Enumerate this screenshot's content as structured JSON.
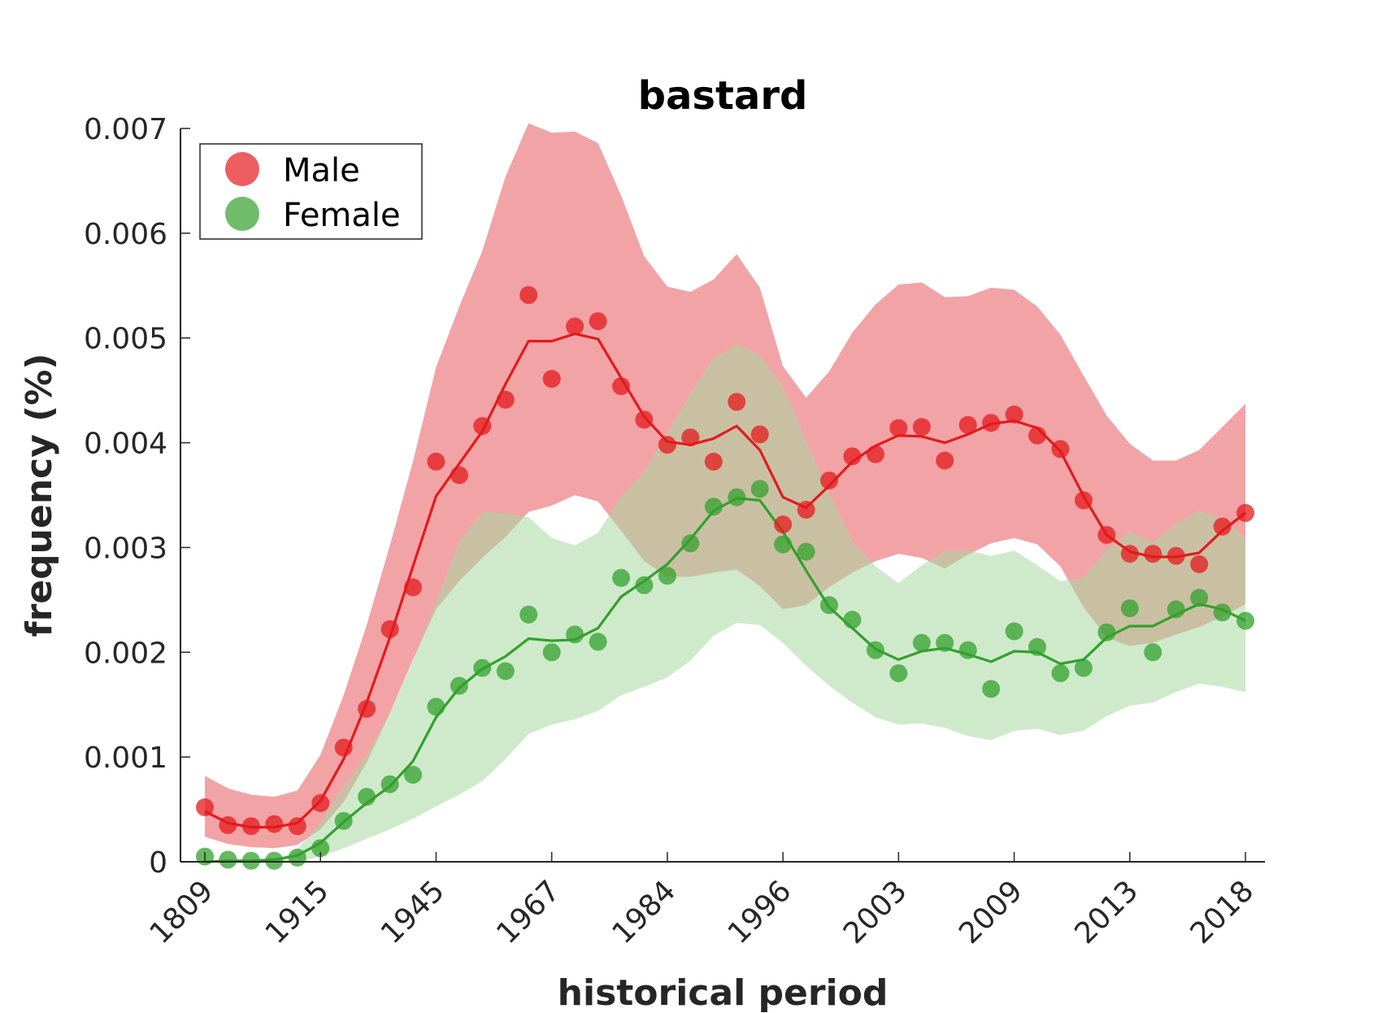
{
  "chart_data": {
    "type": "line",
    "title": "bastard",
    "xlabel": "historical period",
    "ylabel": "frequency (%)",
    "ylim": [
      0,
      0.007
    ],
    "y_ticks": [
      "0",
      "0.001",
      "0.002",
      "0.003",
      "0.004",
      "0.005",
      "0.006",
      "0.007"
    ],
    "x_ticks": [
      {
        "index": 0,
        "label": "1809"
      },
      {
        "index": 5,
        "label": "1915"
      },
      {
        "index": 10,
        "label": "1945"
      },
      {
        "index": 15,
        "label": "1967"
      },
      {
        "index": 20,
        "label": "1984"
      },
      {
        "index": 25,
        "label": "1996"
      },
      {
        "index": 30,
        "label": "2003"
      },
      {
        "index": 35,
        "label": "2009"
      },
      {
        "index": 40,
        "label": "2013"
      },
      {
        "index": 45,
        "label": "2018"
      }
    ],
    "legend": {
      "placement": "top-left",
      "entries": [
        "Male",
        "Female"
      ]
    },
    "grid": false,
    "series": [
      {
        "name": "Male",
        "color": "#e41a1c",
        "band_color": "#f2a3a6",
        "points": [
          0.00052,
          0.00035,
          0.00034,
          0.00036,
          0.00034,
          0.00056,
          0.00109,
          0.00146,
          0.00222,
          0.00262,
          0.00382,
          0.00369,
          0.00416,
          0.00441,
          0.00541,
          0.00461,
          0.00511,
          0.00516,
          0.00454,
          0.00422,
          0.00398,
          0.00405,
          0.00382,
          0.00439,
          0.00408,
          0.00322,
          0.00336,
          0.00364,
          0.00387,
          0.00389,
          0.00414,
          0.00415,
          0.00383,
          0.00417,
          0.00419,
          0.00427,
          0.00407,
          0.00394,
          0.00345,
          0.00312,
          0.00294,
          0.00294,
          0.00292,
          0.00284,
          0.0032,
          0.00333
        ],
        "line": [
          0.00048,
          0.00037,
          0.00033,
          0.00033,
          0.00037,
          0.00058,
          0.00098,
          0.00152,
          0.00214,
          0.00282,
          0.00349,
          0.0038,
          0.00411,
          0.00456,
          0.00497,
          0.00497,
          0.00504,
          0.00499,
          0.00462,
          0.00425,
          0.00401,
          0.00398,
          0.00404,
          0.00416,
          0.00393,
          0.00348,
          0.00338,
          0.00359,
          0.00382,
          0.00397,
          0.00407,
          0.00406,
          0.004,
          0.00408,
          0.00418,
          0.00421,
          0.00414,
          0.00392,
          0.00349,
          0.00312,
          0.00296,
          0.00291,
          0.00291,
          0.00295,
          0.00316,
          0.00333
        ],
        "band_upper": [
          0.00082,
          0.0007,
          0.00064,
          0.00062,
          0.00068,
          0.00102,
          0.00159,
          0.00226,
          0.00302,
          0.00382,
          0.00472,
          0.0053,
          0.00583,
          0.00654,
          0.00705,
          0.00696,
          0.00697,
          0.00686,
          0.00636,
          0.00578,
          0.00549,
          0.00544,
          0.00556,
          0.0058,
          0.00548,
          0.00473,
          0.00443,
          0.00468,
          0.00505,
          0.00532,
          0.00551,
          0.00553,
          0.00539,
          0.0054,
          0.00548,
          0.00546,
          0.0053,
          0.00503,
          0.00464,
          0.00426,
          0.00399,
          0.00383,
          0.00383,
          0.00393,
          0.00415,
          0.00437
        ],
        "band_lower": [
          0.00024,
          0.00017,
          0.00014,
          0.00013,
          0.00016,
          0.00031,
          0.00057,
          0.00095,
          0.00142,
          0.00193,
          0.00241,
          0.00268,
          0.0029,
          0.0031,
          0.00334,
          0.0034,
          0.0035,
          0.00344,
          0.00316,
          0.00287,
          0.00272,
          0.00272,
          0.00276,
          0.00279,
          0.00263,
          0.00241,
          0.00245,
          0.00262,
          0.00276,
          0.00287,
          0.00294,
          0.0029,
          0.0028,
          0.00293,
          0.00304,
          0.00309,
          0.00303,
          0.00282,
          0.00243,
          0.00214,
          0.00206,
          0.00209,
          0.00217,
          0.00224,
          0.00234,
          0.00246
        ]
      },
      {
        "name": "Female",
        "color": "#33a02c",
        "band_color": "#a8d8a1",
        "points": [
          5e-05,
          2e-05,
          1e-05,
          1e-05,
          4e-05,
          0.00013,
          0.00039,
          0.00062,
          0.00074,
          0.00083,
          0.00148,
          0.00168,
          0.00185,
          0.00182,
          0.00236,
          0.002,
          0.00217,
          0.0021,
          0.00271,
          0.00264,
          0.00273,
          0.00304,
          0.00339,
          0.00348,
          0.00356,
          0.00303,
          0.00296,
          0.00245,
          0.00231,
          0.00202,
          0.0018,
          0.00209,
          0.00209,
          0.00202,
          0.00165,
          0.0022,
          0.00205,
          0.0018,
          0.00185,
          0.00219,
          0.00242,
          0.002,
          0.00241,
          0.00252,
          0.00238,
          0.0023
        ],
        "line": [
          0.0,
          1e-05,
          1e-05,
          2e-05,
          6e-05,
          0.00018,
          0.00038,
          0.00056,
          0.00072,
          0.00096,
          0.00138,
          0.00166,
          0.00184,
          0.00196,
          0.00213,
          0.00211,
          0.00212,
          0.00223,
          0.00253,
          0.00268,
          0.00284,
          0.00308,
          0.00335,
          0.00347,
          0.00345,
          0.00315,
          0.00278,
          0.00243,
          0.00223,
          0.00203,
          0.00193,
          0.00201,
          0.00204,
          0.00198,
          0.00191,
          0.00201,
          0.002,
          0.00189,
          0.00193,
          0.00214,
          0.00225,
          0.00225,
          0.00236,
          0.00246,
          0.00241,
          0.0023
        ],
        "band_upper": [
          0.0,
          0.0,
          0.0,
          0.0,
          0.00012,
          0.00038,
          0.00072,
          0.00102,
          0.00142,
          0.00192,
          0.00248,
          0.00306,
          0.00334,
          0.00333,
          0.00329,
          0.00309,
          0.00302,
          0.00314,
          0.00349,
          0.00372,
          0.0041,
          0.00447,
          0.00481,
          0.00494,
          0.00484,
          0.00453,
          0.00402,
          0.00352,
          0.00306,
          0.00282,
          0.00266,
          0.00283,
          0.00297,
          0.00297,
          0.00292,
          0.00297,
          0.00283,
          0.00268,
          0.00271,
          0.00298,
          0.00315,
          0.00305,
          0.00323,
          0.00335,
          0.00328,
          0.00309
        ],
        "band_lower": [
          0.0,
          0.0,
          0.0,
          0.0,
          0.0,
          5e-05,
          0.00013,
          0.00022,
          0.00031,
          0.00041,
          0.00053,
          0.00064,
          0.00077,
          0.00098,
          0.00122,
          0.00131,
          0.00136,
          0.00144,
          0.00159,
          0.00167,
          0.00176,
          0.00192,
          0.00216,
          0.00228,
          0.00226,
          0.00209,
          0.00187,
          0.00168,
          0.00152,
          0.00138,
          0.00131,
          0.00132,
          0.00128,
          0.0012,
          0.00116,
          0.00125,
          0.00127,
          0.00121,
          0.00125,
          0.00139,
          0.00149,
          0.00152,
          0.00162,
          0.0017,
          0.00167,
          0.00162
        ]
      }
    ]
  }
}
